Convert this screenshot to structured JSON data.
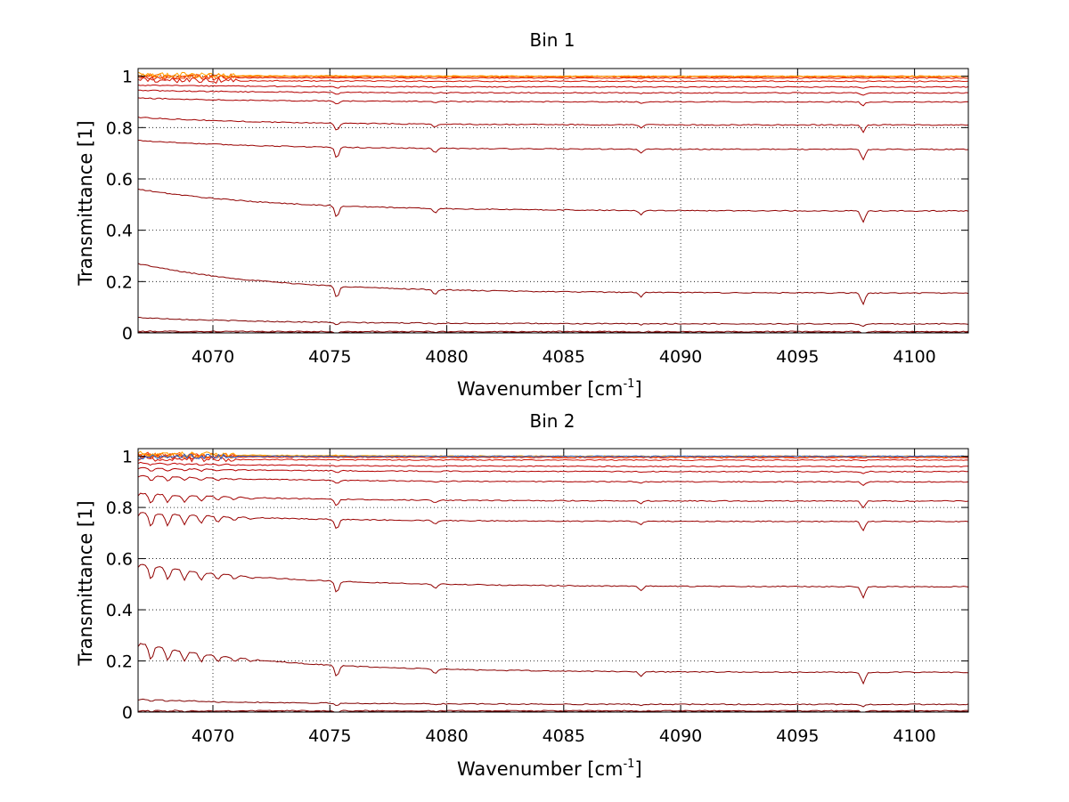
{
  "chart_data": [
    {
      "type": "line",
      "title": "Bin 1",
      "xlabel": "Wavenumber [cm",
      "xlabel_sup": "-1",
      "xlabel_end": "]",
      "ylabel": "Transmittance [1]",
      "xlim": [
        4066.8,
        4102.3
      ],
      "ylim": [
        0,
        1.03
      ],
      "xticks": [
        4070,
        4075,
        4080,
        4085,
        4090,
        4095,
        4100
      ],
      "xtick_labels": [
        "4070",
        "4075",
        "4080",
        "4085",
        "4090",
        "4095",
        "4100"
      ],
      "yticks": [
        0,
        0.2,
        0.4,
        0.6,
        0.8,
        1
      ],
      "ytick_labels": [
        "0",
        "0.2",
        "0.4",
        "0.6",
        "0.8",
        "1"
      ],
      "grid": true,
      "legend": "none",
      "absorption_lines": [
        4075.3,
        4079.5,
        4088.3,
        4097.8
      ],
      "series": [
        {
          "baseline_start": 0.001,
          "baseline_end": 0.001,
          "color": "#6b0000"
        },
        {
          "baseline_start": 0.006,
          "baseline_end": 0.005,
          "color": "#800000"
        },
        {
          "baseline_start": 0.06,
          "baseline_end": 0.035,
          "color": "#800000"
        },
        {
          "baseline_start": 0.27,
          "baseline_end": 0.155,
          "color": "#8a0000"
        },
        {
          "baseline_start": 0.56,
          "baseline_end": 0.475,
          "color": "#900000"
        },
        {
          "baseline_start": 0.75,
          "baseline_end": 0.715,
          "color": "#990000"
        },
        {
          "baseline_start": 0.84,
          "baseline_end": 0.81,
          "color": "#a00000"
        },
        {
          "baseline_start": 0.915,
          "baseline_end": 0.9,
          "color": "#aa0000"
        },
        {
          "baseline_start": 0.945,
          "baseline_end": 0.935,
          "color": "#b40000"
        },
        {
          "baseline_start": 0.965,
          "baseline_end": 0.958,
          "color": "#c00000"
        },
        {
          "baseline_start": 0.985,
          "baseline_end": 0.98,
          "color": "#d01000"
        },
        {
          "baseline_start": 0.995,
          "baseline_end": 0.993,
          "color": "#e02000"
        },
        {
          "baseline_start": 1.0,
          "baseline_end": 0.998,
          "color": "#f03a00"
        },
        {
          "baseline_start": 1.0,
          "baseline_end": 1.0,
          "color": "#ff6a00"
        },
        {
          "baseline_start": 1.005,
          "baseline_end": 1.0,
          "color": "#ffa000"
        }
      ]
    },
    {
      "type": "line",
      "title": "Bin 2",
      "xlabel": "Wavenumber [cm",
      "xlabel_sup": "-1",
      "xlabel_end": "]",
      "ylabel": "Transmittance [1]",
      "xlim": [
        4066.8,
        4102.3
      ],
      "ylim": [
        0,
        1.03
      ],
      "xticks": [
        4070,
        4075,
        4080,
        4085,
        4090,
        4095,
        4100
      ],
      "xtick_labels": [
        "4070",
        "4075",
        "4080",
        "4085",
        "4090",
        "4095",
        "4100"
      ],
      "yticks": [
        0,
        0.2,
        0.4,
        0.6,
        0.8,
        1
      ],
      "ytick_labels": [
        "0",
        "0.2",
        "0.4",
        "0.6",
        "0.8",
        "1"
      ],
      "grid": true,
      "legend": "none",
      "absorption_lines": [
        4075.3,
        4079.5,
        4088.3,
        4097.8
      ],
      "series": [
        {
          "baseline_start": 0.001,
          "baseline_end": 0.001,
          "color": "#6b0000"
        },
        {
          "baseline_start": 0.006,
          "baseline_end": 0.005,
          "color": "#800000"
        },
        {
          "baseline_start": 0.05,
          "baseline_end": 0.03,
          "color": "#800000"
        },
        {
          "baseline_start": 0.27,
          "baseline_end": 0.155,
          "color": "#8a0000"
        },
        {
          "baseline_start": 0.58,
          "baseline_end": 0.49,
          "color": "#900000"
        },
        {
          "baseline_start": 0.78,
          "baseline_end": 0.745,
          "color": "#990000"
        },
        {
          "baseline_start": 0.855,
          "baseline_end": 0.825,
          "color": "#a00000"
        },
        {
          "baseline_start": 0.925,
          "baseline_end": 0.9,
          "color": "#aa0000"
        },
        {
          "baseline_start": 0.955,
          "baseline_end": 0.94,
          "color": "#b40000"
        },
        {
          "baseline_start": 0.975,
          "baseline_end": 0.96,
          "color": "#c00000"
        },
        {
          "baseline_start": 0.99,
          "baseline_end": 0.985,
          "color": "#d01000"
        },
        {
          "baseline_start": 1.0,
          "baseline_end": 0.995,
          "color": "#e02000"
        },
        {
          "baseline_start": 1.005,
          "baseline_end": 0.998,
          "color": "#f03a00"
        },
        {
          "baseline_start": 1.005,
          "baseline_end": 1.0,
          "color": "#ff6a00"
        },
        {
          "baseline_start": 1.01,
          "baseline_end": 1.0,
          "color": "#ffa000"
        },
        {
          "baseline_start": 1.0,
          "baseline_end": 1.0,
          "color": "#1f5fd0"
        }
      ]
    }
  ]
}
